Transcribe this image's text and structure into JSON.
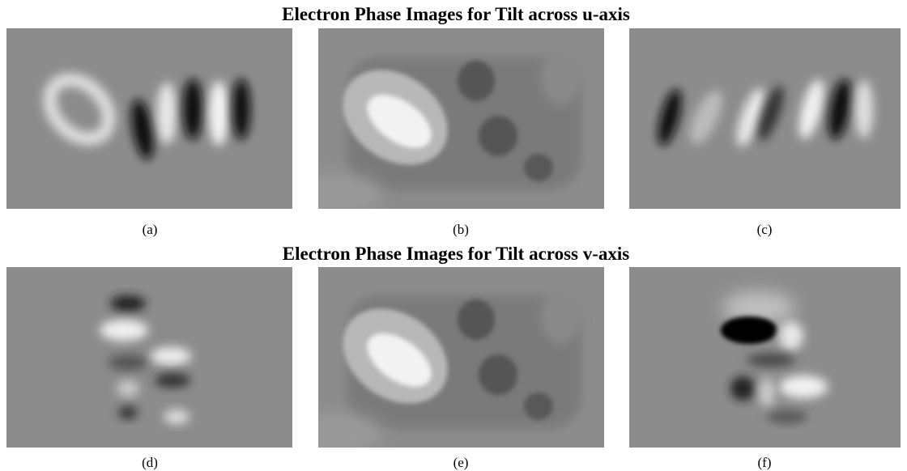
{
  "rows": [
    {
      "title": "Electron Phase Images for Tilt across u-axis",
      "panels": [
        {
          "caption": "(a)"
        },
        {
          "caption": "(b)"
        },
        {
          "caption": "(c)"
        }
      ]
    },
    {
      "title": "Electron Phase Images for Tilt across v-axis",
      "panels": [
        {
          "caption": "(d)"
        },
        {
          "caption": "(e)"
        },
        {
          "caption": "(f)"
        }
      ]
    }
  ]
}
